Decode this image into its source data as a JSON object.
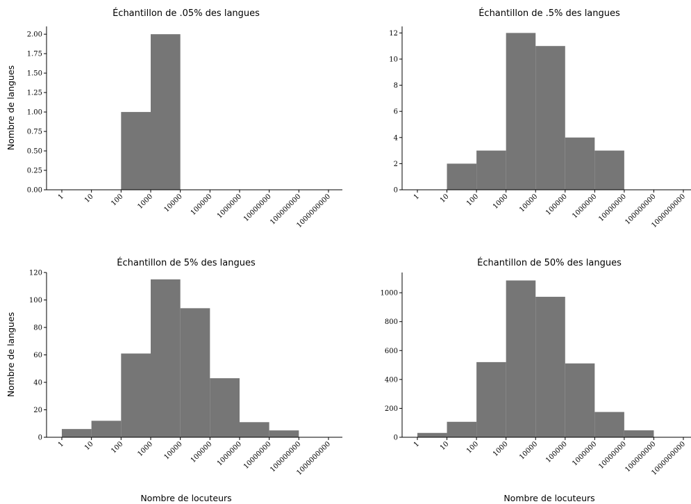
{
  "figure": {
    "xlabel": "Nombre de locuteurs",
    "ylabel": "Nombre de langues"
  },
  "chart_data": [
    {
      "type": "bar",
      "title": "Échantillon de .05% des langues",
      "x_tick_labels": [
        "1",
        "10",
        "100",
        "1000",
        "10000",
        "100000",
        "1000000",
        "10000000",
        "100000000",
        "1000000000"
      ],
      "bin_edges": [
        1,
        10,
        100,
        1000,
        10000,
        100000,
        1000000,
        10000000,
        100000000,
        1000000000
      ],
      "values": [
        0,
        0,
        1,
        2,
        0,
        0,
        0,
        0,
        0
      ],
      "ylim": [
        0,
        2.1
      ],
      "y_ticks": [
        "0.00",
        "0.25",
        "0.50",
        "0.75",
        "1.00",
        "1.25",
        "1.50",
        "1.75",
        "2.00"
      ],
      "xlabel": "",
      "ylabel": "Nombre de langues",
      "x_scale": "log"
    },
    {
      "type": "bar",
      "title": "Échantillon de .5% des langues",
      "x_tick_labels": [
        "1",
        "10",
        "100",
        "1000",
        "10000",
        "100000",
        "1000000",
        "10000000",
        "100000000",
        "1000000000"
      ],
      "bin_edges": [
        1,
        10,
        100,
        1000,
        10000,
        100000,
        1000000,
        10000000,
        100000000,
        1000000000
      ],
      "values": [
        0,
        2,
        3,
        12,
        11,
        4,
        3,
        0,
        0
      ],
      "ylim": [
        0,
        12.5
      ],
      "y_ticks": [
        "0",
        "2",
        "4",
        "6",
        "8",
        "10",
        "12"
      ],
      "xlabel": "",
      "ylabel": "",
      "x_scale": "log"
    },
    {
      "type": "bar",
      "title": "Échantillon de 5% des langues",
      "x_tick_labels": [
        "1",
        "10",
        "100",
        "1000",
        "10000",
        "100000",
        "1000000",
        "10000000",
        "100000000",
        "1000000000"
      ],
      "bin_edges": [
        1,
        10,
        100,
        1000,
        10000,
        100000,
        1000000,
        10000000,
        100000000,
        1000000000
      ],
      "values": [
        6,
        12,
        61,
        115,
        94,
        43,
        11,
        5,
        0
      ],
      "ylim": [
        0,
        120
      ],
      "y_ticks": [
        "0",
        "20",
        "40",
        "60",
        "80",
        "100",
        "120"
      ],
      "xlabel": "Nombre de locuteurs",
      "ylabel": "Nombre de langues",
      "x_scale": "log"
    },
    {
      "type": "bar",
      "title": "Échantillon de 50% des langues",
      "x_tick_labels": [
        "1",
        "10",
        "100",
        "1000",
        "10000",
        "100000",
        "1000000",
        "10000000",
        "100000000",
        "1000000000"
      ],
      "bin_edges": [
        1,
        10,
        100,
        1000,
        10000,
        100000,
        1000000,
        10000000,
        100000000,
        1000000000
      ],
      "values": [
        30,
        107,
        520,
        1085,
        972,
        511,
        175,
        48,
        0
      ],
      "ylim": [
        0,
        1140
      ],
      "y_ticks": [
        "0",
        "200",
        "400",
        "600",
        "800",
        "1000"
      ],
      "xlabel": "Nombre de locuteurs",
      "ylabel": "",
      "x_scale": "log"
    }
  ],
  "colors": {
    "bar": "#767676",
    "axis": "#000000"
  }
}
